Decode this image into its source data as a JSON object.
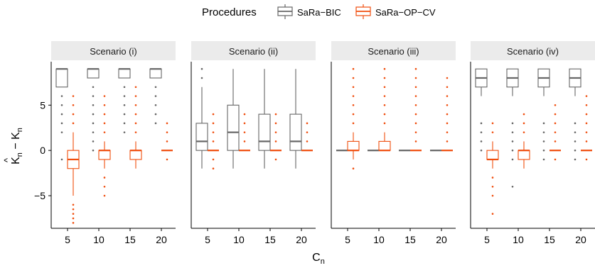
{
  "chart_data": {
    "type": "boxplot",
    "legend": {
      "title": "Procedures",
      "placement": "top",
      "entries": [
        {
          "name": "SaRa−BIC",
          "color": "#666666"
        },
        {
          "name": "SaRa−OP−CV",
          "color": "#F04E0E"
        }
      ]
    },
    "ylabel": {
      "main": "K",
      "sub": "n",
      "hat": "^",
      "minus": "−",
      "main2": "K",
      "sub2": "n"
    },
    "xlabel": {
      "main": "C",
      "sub": "n"
    },
    "ylim": [
      -8.6,
      9.8
    ],
    "yticks": [
      {
        "v": 5,
        "label": "5"
      },
      {
        "v": 0,
        "label": "0"
      },
      {
        "v": -5,
        "label": "−5"
      }
    ],
    "categories": [
      "5",
      "10",
      "15",
      "20"
    ],
    "panels": [
      {
        "title": "Scenario (i)",
        "series": [
          {
            "name": "SaRa−BIC",
            "boxes": [
              {
                "q1": 7,
                "med": 9,
                "q3": 9,
                "lo": 7,
                "hi": 9,
                "out": [
                  6,
                  5,
                  4,
                  3,
                  2,
                  -1
                ]
              },
              {
                "q1": 8,
                "med": 9,
                "q3": 9,
                "lo": 8,
                "hi": 9,
                "out": [
                  7,
                  6,
                  5,
                  4,
                  3,
                  2,
                  1,
                  0
                ]
              },
              {
                "q1": 8,
                "med": 9,
                "q3": 9,
                "lo": 8,
                "hi": 9,
                "out": [
                  7,
                  6,
                  5,
                  4,
                  3,
                  2
                ]
              },
              {
                "q1": 8,
                "med": 9,
                "q3": 9,
                "lo": 8,
                "hi": 9,
                "out": [
                  7,
                  6,
                  5,
                  4,
                  3
                ]
              }
            ]
          },
          {
            "name": "SaRa−OP−CV",
            "boxes": [
              {
                "q1": -2,
                "med": -1,
                "q3": 0,
                "lo": -5,
                "hi": 2,
                "out": [
                  6,
                  5,
                  4,
                  3,
                  -6,
                  -6.5,
                  -7,
                  -7.5,
                  -8
                ]
              },
              {
                "q1": -1,
                "med": 0,
                "q3": 0,
                "lo": -2,
                "hi": 1,
                "out": [
                  6,
                  5,
                  4,
                  3,
                  2,
                  -3,
                  -4,
                  -5
                ]
              },
              {
                "q1": -1,
                "med": 0,
                "q3": 0,
                "lo": -2,
                "hi": 1,
                "out": [
                  7,
                  6,
                  5,
                  4,
                  3,
                  2
                ]
              },
              {
                "q1": 0,
                "med": 0,
                "q3": 0,
                "lo": 0,
                "hi": 0,
                "out": [
                  3,
                  2,
                  1,
                  -1
                ]
              }
            ]
          }
        ]
      },
      {
        "title": "Scenario (ii)",
        "series": [
          {
            "name": "SaRa−BIC",
            "boxes": [
              {
                "q1": 0,
                "med": 1,
                "q3": 3,
                "lo": -2,
                "hi": 7,
                "out": [
                  9,
                  8
                ]
              },
              {
                "q1": 0,
                "med": 2,
                "q3": 5,
                "lo": -2,
                "hi": 9,
                "out": []
              },
              {
                "q1": 0,
                "med": 1,
                "q3": 4,
                "lo": -2,
                "hi": 9,
                "out": []
              },
              {
                "q1": 0,
                "med": 1,
                "q3": 4,
                "lo": -2,
                "hi": 9,
                "out": []
              }
            ]
          },
          {
            "name": "SaRa−OP−CV",
            "boxes": [
              {
                "q1": 0,
                "med": 0,
                "q3": 0,
                "lo": 0,
                "hi": 0,
                "out": [
                  4,
                  3,
                  2,
                  1,
                  -1,
                  -2
                ]
              },
              {
                "q1": 0,
                "med": 0,
                "q3": 0,
                "lo": 0,
                "hi": 0,
                "out": [
                  4,
                  3,
                  2,
                  1
                ]
              },
              {
                "q1": 0,
                "med": 0,
                "q3": 0,
                "lo": 0,
                "hi": 0,
                "out": [
                  4,
                  3,
                  2,
                  1,
                  -1
                ]
              },
              {
                "q1": 0,
                "med": 0,
                "q3": 0,
                "lo": 0,
                "hi": 0,
                "out": [
                  3,
                  2,
                  1
                ]
              }
            ]
          }
        ]
      },
      {
        "title": "Scenario (iii)",
        "series": [
          {
            "name": "SaRa−BIC",
            "boxes": [
              {
                "q1": 0,
                "med": 0,
                "q3": 0,
                "lo": 0,
                "hi": 0,
                "out": []
              },
              {
                "q1": 0,
                "med": 0,
                "q3": 0,
                "lo": 0,
                "hi": 0,
                "out": []
              },
              {
                "q1": 0,
                "med": 0,
                "q3": 0,
                "lo": 0,
                "hi": 0,
                "out": []
              },
              {
                "q1": 0,
                "med": 0,
                "q3": 0,
                "lo": 0,
                "hi": 0,
                "out": []
              }
            ]
          },
          {
            "name": "SaRa−OP−CV",
            "boxes": [
              {
                "q1": 0,
                "med": 0,
                "q3": 1,
                "lo": -1,
                "hi": 2,
                "out": [
                  9,
                  8,
                  7,
                  6,
                  5,
                  4,
                  3,
                  -2
                ]
              },
              {
                "q1": 0,
                "med": 0,
                "q3": 1,
                "lo": 0,
                "hi": 2,
                "out": [
                  9,
                  8,
                  7,
                  6,
                  5,
                  4,
                  3
                ]
              },
              {
                "q1": 0,
                "med": 0,
                "q3": 0,
                "lo": 0,
                "hi": 0,
                "out": [
                  9,
                  8,
                  7,
                  6,
                  5,
                  4,
                  3,
                  2,
                  1
                ]
              },
              {
                "q1": 0,
                "med": 0,
                "q3": 0,
                "lo": 0,
                "hi": 0,
                "out": [
                  8,
                  7,
                  6,
                  5,
                  4,
                  3,
                  2,
                  1
                ]
              }
            ]
          }
        ]
      },
      {
        "title": "Scenario (iv)",
        "series": [
          {
            "name": "SaRa−BIC",
            "boxes": [
              {
                "q1": 7,
                "med": 8,
                "q3": 9,
                "lo": 6,
                "hi": 9,
                "out": [
                  3,
                  2,
                  1,
                  0
                ]
              },
              {
                "q1": 7,
                "med": 8,
                "q3": 9,
                "lo": 6,
                "hi": 9,
                "out": [
                  3,
                  2,
                  1,
                  0,
                  -1,
                  -4
                ]
              },
              {
                "q1": 7,
                "med": 8,
                "q3": 9,
                "lo": 6,
                "hi": 9,
                "out": [
                  3,
                  2,
                  1,
                  0,
                  -1
                ]
              },
              {
                "q1": 7,
                "med": 8,
                "q3": 9,
                "lo": 6,
                "hi": 9,
                "out": [
                  3,
                  2,
                  1,
                  0,
                  -1
                ]
              }
            ]
          },
          {
            "name": "SaRa−OP−CV",
            "boxes": [
              {
                "q1": -1,
                "med": -1,
                "q3": 0,
                "lo": -2,
                "hi": 1,
                "out": [
                  3,
                  2,
                  -3,
                  -4,
                  -5,
                  -7
                ]
              },
              {
                "q1": -1,
                "med": 0,
                "q3": 0,
                "lo": -2,
                "hi": 1,
                "out": [
                  4,
                  3,
                  2
                ]
              },
              {
                "q1": 0,
                "med": 0,
                "q3": 0,
                "lo": 0,
                "hi": 0,
                "out": [
                  5,
                  4,
                  3,
                  2,
                  1,
                  -1
                ]
              },
              {
                "q1": 0,
                "med": 0,
                "q3": 0,
                "lo": 0,
                "hi": 0,
                "out": [
                  6,
                  5,
                  4,
                  3,
                  2,
                  1,
                  -1
                ]
              }
            ]
          }
        ]
      }
    ]
  }
}
